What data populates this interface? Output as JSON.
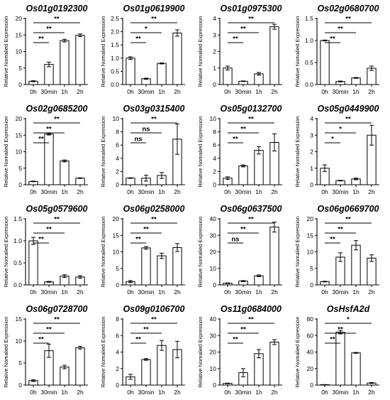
{
  "chart_data": [
    {
      "type": "bar",
      "title": "Os01g0192300",
      "ylabel": "Relative Nomalied Expression",
      "categories": [
        "0h",
        "30min",
        "1h",
        "2h"
      ],
      "values": [
        1,
        6.1,
        13.3,
        14.9
      ],
      "errors": [
        0.15,
        0.7,
        0.4,
        0.4
      ],
      "ylim": [
        0,
        20
      ],
      "yticks": [
        "0",
        "5",
        "10",
        "15",
        "20"
      ],
      "comparisons": [
        {
          "to": "30min",
          "label": "**"
        },
        {
          "to": "1h",
          "label": "**"
        },
        {
          "to": "2h",
          "label": "**"
        }
      ]
    },
    {
      "type": "bar",
      "title": "Os01g0619900",
      "ylabel": "Relative Nomalied Expression",
      "categories": [
        "0h",
        "30min",
        "1h",
        "2h"
      ],
      "values": [
        1,
        0.22,
        0.8,
        1.95
      ],
      "errors": [
        0.05,
        0.02,
        0.02,
        0.12
      ],
      "ylim": [
        0,
        2.5
      ],
      "yticks": [
        "0.0",
        "0.5",
        "1.0",
        "1.5",
        "2.0",
        "2.5"
      ],
      "comparisons": [
        {
          "to": "30min",
          "label": "**"
        },
        {
          "to": "1h",
          "label": "*"
        },
        {
          "to": "2h",
          "label": "**"
        }
      ]
    },
    {
      "type": "bar",
      "title": "Os01g0975300",
      "ylabel": "Relative Nomalied Expression",
      "categories": [
        "0h",
        "30min",
        "1h",
        "2h"
      ],
      "values": [
        1,
        0.2,
        0.65,
        3.5
      ],
      "errors": [
        0.12,
        0.02,
        0.08,
        0.15
      ],
      "ylim": [
        0,
        4
      ],
      "yticks": [
        "0",
        "1",
        "2",
        "3",
        "4"
      ],
      "comparisons": [
        {
          "to": "30min",
          "label": "**"
        },
        {
          "to": "1h",
          "label": "**"
        },
        {
          "to": "2h",
          "label": "**"
        }
      ]
    },
    {
      "type": "bar",
      "title": "Os02g0680700",
      "ylabel": "Relative Nomalied Expression",
      "categories": [
        "0h",
        "30min",
        "1h",
        "2h"
      ],
      "values": [
        1,
        0.07,
        0.15,
        0.37
      ],
      "errors": [
        0.01,
        0.01,
        0.01,
        0.05
      ],
      "ylim": [
        0,
        1.5
      ],
      "yticks": [
        "0.0",
        "0.5",
        "1.0",
        "1.5"
      ],
      "comparisons": [
        {
          "to": "30min",
          "label": "**"
        },
        {
          "to": "1h",
          "label": "**"
        },
        {
          "to": "2h",
          "label": "**"
        }
      ]
    },
    {
      "type": "bar",
      "title": "Os02g0685200",
      "ylabel": "Relative Nomalied Expression",
      "categories": [
        "0h",
        "30min",
        "1h",
        "2h"
      ],
      "values": [
        1,
        15.3,
        7.2,
        2
      ],
      "errors": [
        0.1,
        0.25,
        0.3,
        0.1
      ],
      "ylim": [
        0,
        20
      ],
      "yticks": [
        "0",
        "5",
        "10",
        "15",
        "20"
      ],
      "comparisons": [
        {
          "to": "30min",
          "label": "**"
        },
        {
          "to": "1h",
          "label": "**"
        },
        {
          "to": "2h",
          "label": "**"
        }
      ]
    },
    {
      "type": "bar",
      "title": "Os03g0315400",
      "ylabel": "Relative Nomalied Expression",
      "categories": [
        "0h",
        "30min",
        "1h",
        "2h"
      ],
      "values": [
        1,
        1,
        1.4,
        6.9
      ],
      "errors": [
        0.05,
        0.45,
        0.45,
        2.3
      ],
      "ylim": [
        0,
        10
      ],
      "yticks": [
        "0",
        "2",
        "4",
        "6",
        "8",
        "10"
      ],
      "comparisons": [
        {
          "to": "30min",
          "label": "ns"
        },
        {
          "to": "1h",
          "label": "ns"
        },
        {
          "to": "2h",
          "label": "**"
        }
      ]
    },
    {
      "type": "bar",
      "title": "Os05g0132700",
      "ylabel": "Relative Nomalied Expression",
      "categories": [
        "0h",
        "30min",
        "1h",
        "2h"
      ],
      "values": [
        1,
        2.85,
        5.2,
        6.4
      ],
      "errors": [
        0.2,
        0.15,
        0.55,
        1.3
      ],
      "ylim": [
        0,
        10
      ],
      "yticks": [
        "0",
        "2",
        "4",
        "6",
        "8",
        "10"
      ],
      "comparisons": [
        {
          "to": "30min",
          "label": "**"
        },
        {
          "to": "1h",
          "label": "**"
        },
        {
          "to": "2h",
          "label": "**"
        }
      ]
    },
    {
      "type": "bar",
      "title": "Os05g0449900",
      "ylabel": "Relative Nomalied Expression",
      "categories": [
        "0h",
        "30min",
        "1h",
        "2h"
      ],
      "values": [
        1,
        0.25,
        0.35,
        3
      ],
      "errors": [
        0.2,
        0.02,
        0.05,
        0.6
      ],
      "ylim": [
        0,
        4
      ],
      "yticks": [
        "0",
        "1",
        "2",
        "3",
        "4"
      ],
      "comparisons": [
        {
          "to": "30min",
          "label": "*"
        },
        {
          "to": "1h",
          "label": "*"
        },
        {
          "to": "2h",
          "label": "**"
        }
      ]
    },
    {
      "type": "bar",
      "title": "Os05g0579600",
      "ylabel": "Relative Nomalied Expression",
      "categories": [
        "0h",
        "30min",
        "1h",
        "2h"
      ],
      "values": [
        1,
        0.07,
        0.2,
        0.18
      ],
      "errors": [
        0.08,
        0.01,
        0.03,
        0.03
      ],
      "ylim": [
        0,
        1.5
      ],
      "yticks": [
        "0.0",
        "0.5",
        "1.0",
        "1.5"
      ],
      "comparisons": [
        {
          "to": "30min",
          "label": "**"
        },
        {
          "to": "1h",
          "label": "**"
        },
        {
          "to": "2h",
          "label": "**"
        }
      ]
    },
    {
      "type": "bar",
      "title": "Os06g0258000",
      "ylabel": "Relative Nomalied Expression",
      "categories": [
        "0h",
        "30min",
        "1h",
        "2h"
      ],
      "values": [
        1,
        11.2,
        8.8,
        11.3
      ],
      "errors": [
        0.3,
        0.4,
        0.8,
        1.2
      ],
      "ylim": [
        0,
        20
      ],
      "yticks": [
        "0",
        "5",
        "10",
        "15",
        "20"
      ],
      "comparisons": [
        {
          "to": "30min",
          "label": "**"
        },
        {
          "to": "1h",
          "label": "**"
        },
        {
          "to": "2h",
          "label": "**"
        }
      ]
    },
    {
      "type": "bar",
      "title": "Os06g0637500",
      "ylabel": "Relative Nomalied Expression",
      "categories": [
        "0h",
        "30min",
        "1h",
        "2h"
      ],
      "values": [
        1,
        2.3,
        5.5,
        35
      ],
      "errors": [
        0.2,
        0.3,
        0.5,
        3
      ],
      "ylim": [
        0,
        40
      ],
      "yticks": [
        "0",
        "10",
        "20",
        "30",
        "40"
      ],
      "comparisons": [
        {
          "to": "30min",
          "label": "ns"
        },
        {
          "to": "1h",
          "label": "**"
        },
        {
          "to": "2h",
          "label": "**"
        }
      ]
    },
    {
      "type": "bar",
      "title": "Os06g0669700",
      "ylabel": "Relative Nomalied Expression",
      "categories": [
        "0h",
        "30min",
        "1h",
        "2h"
      ],
      "values": [
        1,
        8.4,
        12,
        8.1
      ],
      "errors": [
        0.1,
        1.3,
        1.4,
        1
      ],
      "ylim": [
        0,
        20
      ],
      "yticks": [
        "0",
        "5",
        "10",
        "15",
        "20"
      ],
      "comparisons": [
        {
          "to": "30min",
          "label": "**"
        },
        {
          "to": "1h",
          "label": "**"
        },
        {
          "to": "2h",
          "label": "**"
        }
      ]
    },
    {
      "type": "bar",
      "title": "Os06g0728700",
      "ylabel": "Relative Nomalied Expression",
      "categories": [
        "0h",
        "30min",
        "1h",
        "2h"
      ],
      "values": [
        1,
        7.8,
        4.1,
        8.5
      ],
      "errors": [
        0.2,
        1.5,
        0.4,
        0.3
      ],
      "ylim": [
        0,
        15
      ],
      "yticks": [
        "0",
        "5",
        "10",
        "15"
      ],
      "comparisons": [
        {
          "to": "30min",
          "label": "**"
        },
        {
          "to": "1h",
          "label": "**"
        },
        {
          "to": "2h",
          "label": "**"
        }
      ]
    },
    {
      "type": "bar",
      "title": "Os09g0106700",
      "ylabel": "Relative Nomalied Expression",
      "categories": [
        "0h",
        "30min",
        "1h",
        "2h"
      ],
      "values": [
        1,
        3.1,
        4.8,
        4.3
      ],
      "errors": [
        0.3,
        0.1,
        0.6,
        1
      ],
      "ylim": [
        0,
        8
      ],
      "yticks": [
        "0",
        "2",
        "4",
        "6",
        "8"
      ],
      "comparisons": [
        {
          "to": "30min",
          "label": "**"
        },
        {
          "to": "1h",
          "label": "**"
        },
        {
          "to": "2h",
          "label": "**"
        }
      ]
    },
    {
      "type": "bar",
      "title": "Os11g0684000",
      "ylabel": "Relative Nomalied Expression",
      "categories": [
        "0h",
        "30min",
        "1h",
        "2h"
      ],
      "values": [
        1,
        7.5,
        19,
        26
      ],
      "errors": [
        0.2,
        2.5,
        2.5,
        1.5
      ],
      "ylim": [
        0,
        40
      ],
      "yticks": [
        "0",
        "10",
        "20",
        "30",
        "40"
      ],
      "comparisons": [
        {
          "to": "30min",
          "label": "**"
        },
        {
          "to": "1h",
          "label": "**"
        },
        {
          "to": "2h",
          "label": "**"
        }
      ]
    },
    {
      "type": "bar",
      "title": "OsHsfA2d",
      "ylabel": "Relative Nomalied Expression",
      "categories": [
        "0h",
        "30min",
        "1h",
        "2h"
      ],
      "values": [
        0.5,
        64,
        39,
        2.5
      ],
      "errors": [
        0.1,
        2,
        0.5,
        0.5
      ],
      "ylim": [
        0,
        80
      ],
      "yticks": [
        "0",
        "20",
        "40",
        "60",
        "80"
      ],
      "comparisons": [
        {
          "to": "30min",
          "label": "**"
        },
        {
          "to": "1h",
          "label": "**"
        },
        {
          "to": "2h",
          "label": "*"
        }
      ]
    }
  ]
}
